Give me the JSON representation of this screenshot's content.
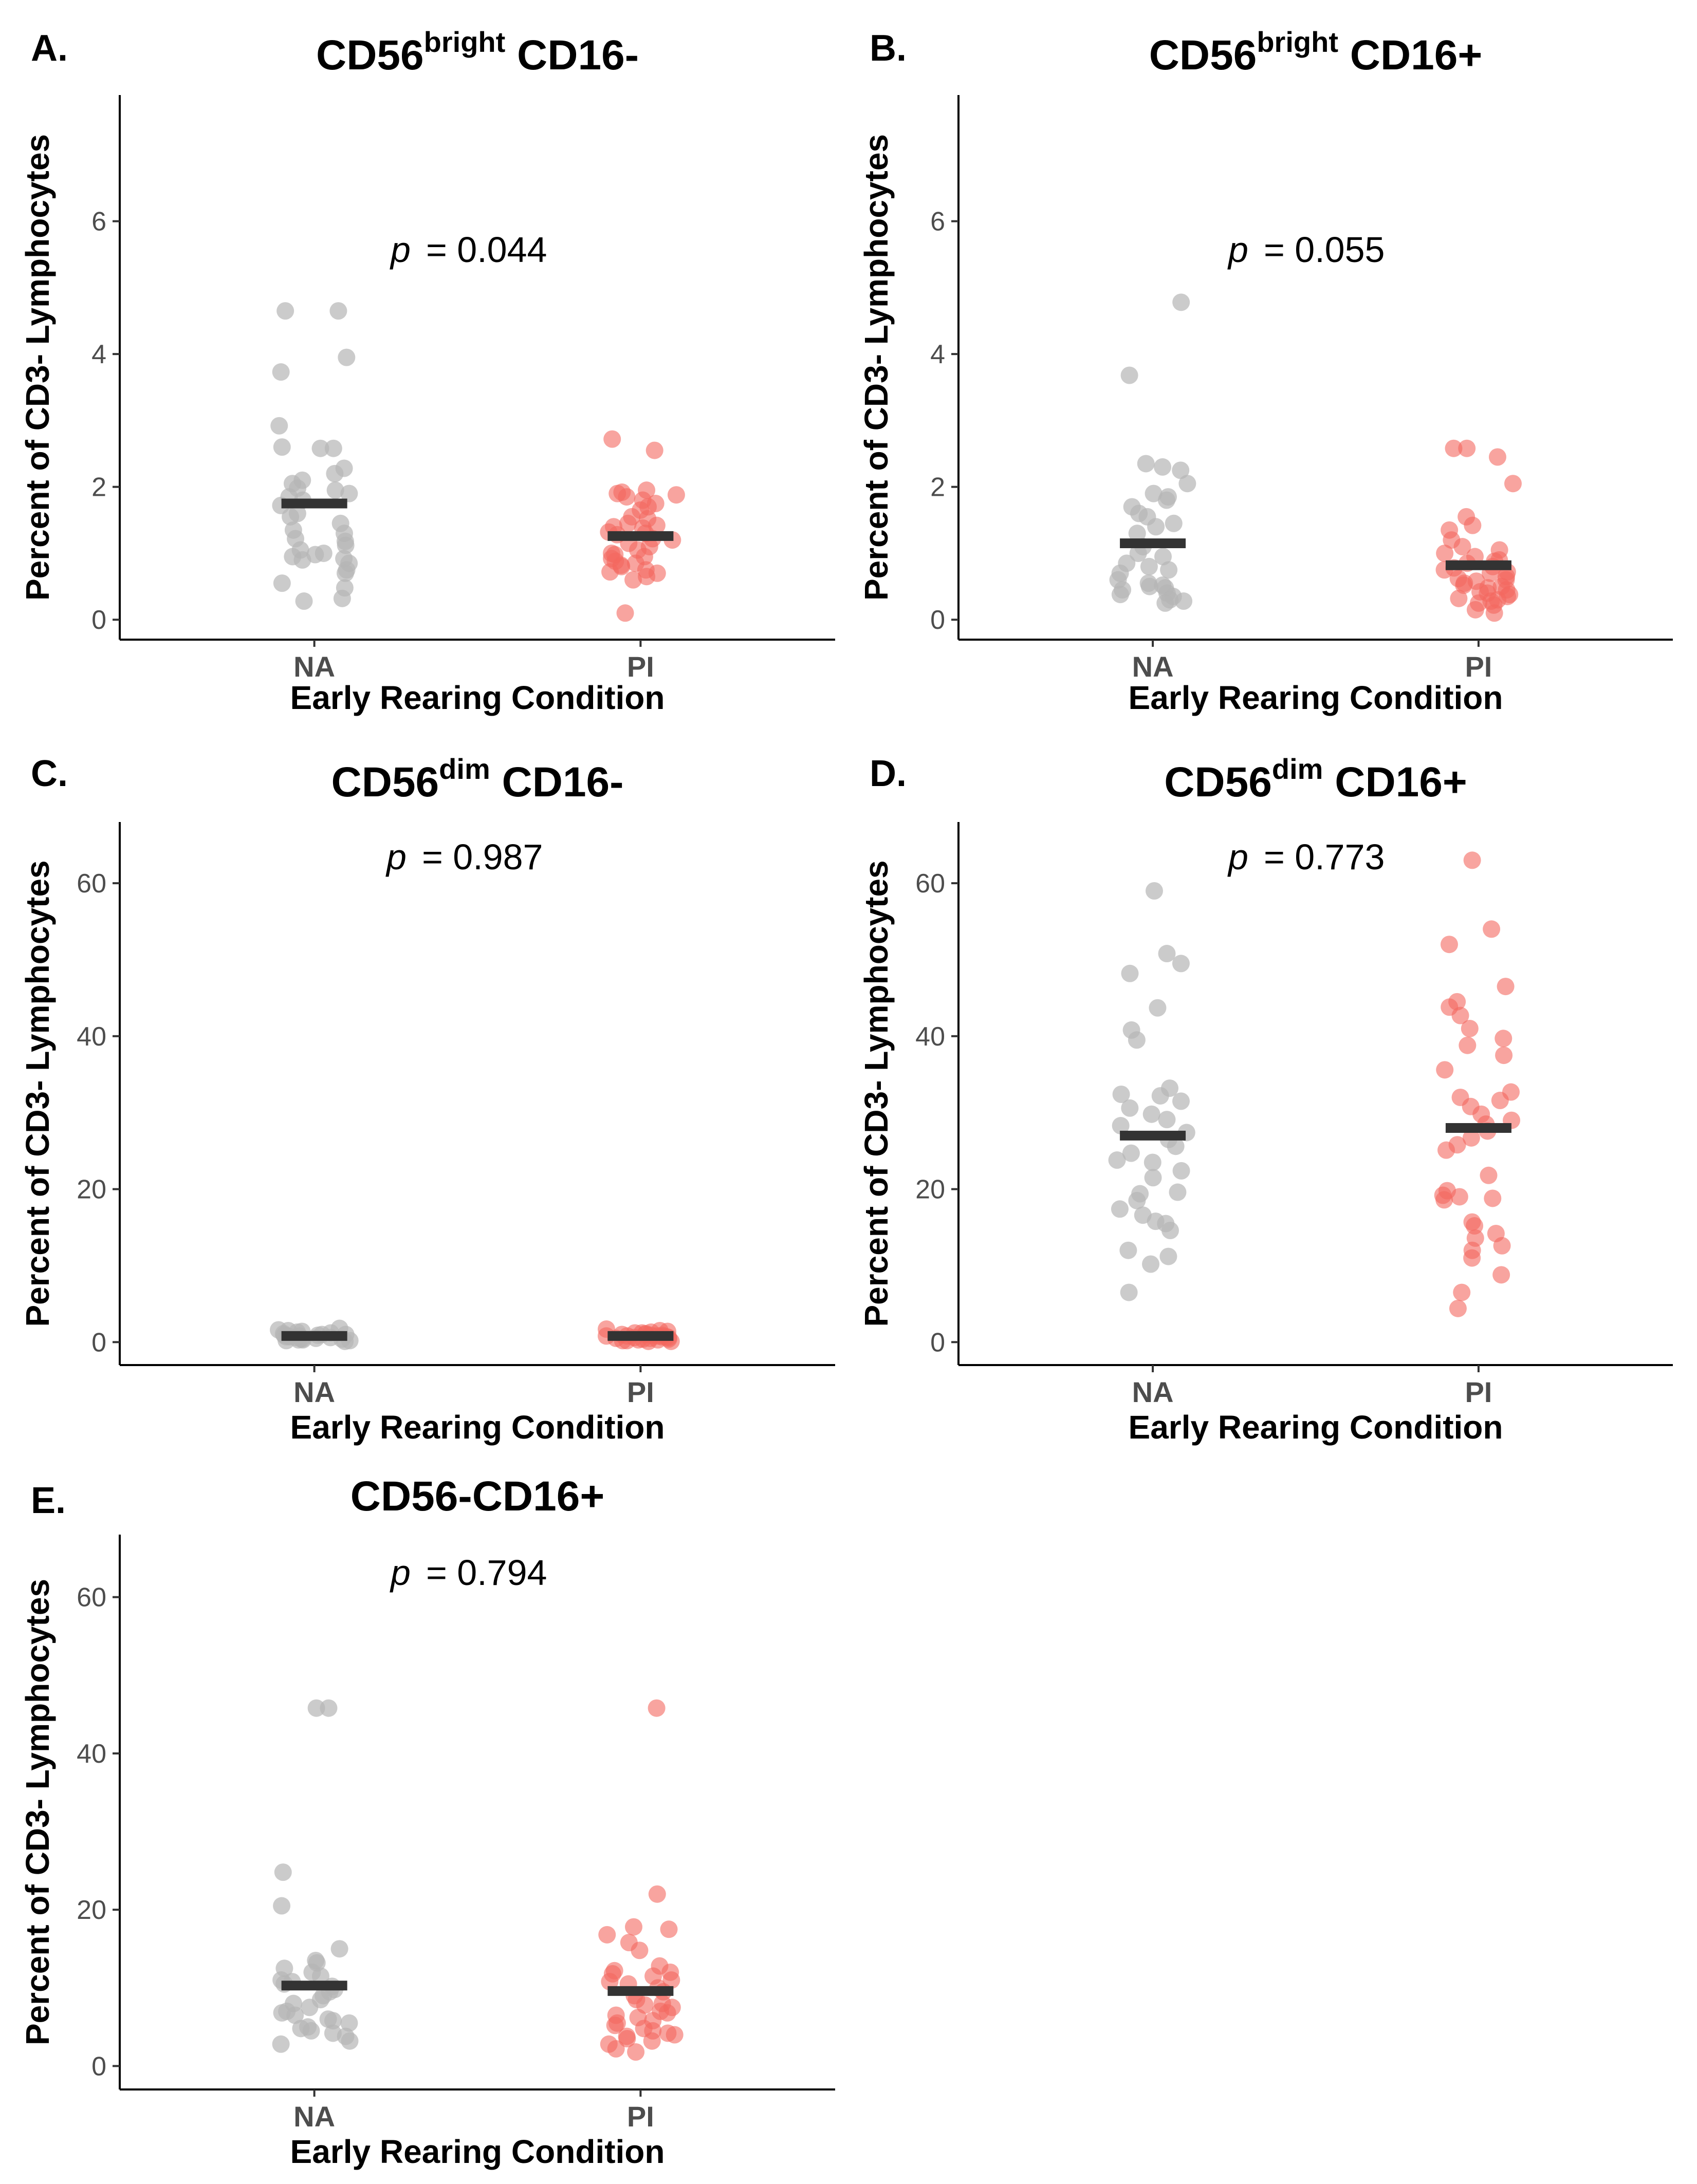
{
  "chart_data": [
    {
      "panel": "A.",
      "type": "scatter",
      "title": {
        "base": "CD56",
        "sup": "bright",
        "rest": " CD16-"
      },
      "p_label": "p",
      "p_value": "= 0.044",
      "xlabel": "Early Rearing Condition",
      "ylabel": "Percent of CD3- Lymphocytes",
      "categories": [
        "NA",
        "PI"
      ],
      "ylim": [
        -0.3,
        7.9
      ],
      "yticks": [
        0,
        2,
        4,
        6
      ],
      "means": [
        1.75,
        1.26
      ],
      "series": [
        {
          "name": "NA",
          "color": "#b5b5b5",
          "values": [
            4.65,
            4.65,
            3.95,
            3.73,
            2.92,
            2.6,
            2.58,
            2.58,
            2.28,
            2.2,
            2.1,
            2.05,
            1.98,
            1.95,
            1.9,
            1.85,
            1.8,
            1.72,
            1.6,
            1.55,
            1.45,
            1.35,
            1.3,
            1.22,
            1.18,
            1.12,
            1.05,
            1.0,
            0.98,
            0.95,
            0.92,
            0.9,
            0.85,
            0.75,
            0.7,
            0.55,
            0.48,
            0.32,
            0.28
          ]
        },
        {
          "name": "PI",
          "color": "#f3685f",
          "values": [
            2.72,
            2.55,
            1.95,
            1.92,
            1.9,
            1.88,
            1.85,
            1.8,
            1.75,
            1.7,
            1.65,
            1.55,
            1.52,
            1.45,
            1.42,
            1.4,
            1.38,
            1.32,
            1.3,
            1.28,
            1.22,
            1.2,
            1.15,
            1.1,
            1.05,
            1.0,
            0.98,
            0.95,
            0.92,
            0.88,
            0.85,
            0.82,
            0.8,
            0.75,
            0.72,
            0.7,
            0.65,
            0.6,
            0.1
          ]
        }
      ]
    },
    {
      "panel": "B.",
      "type": "scatter",
      "title": {
        "base": "CD56",
        "sup": "bright",
        "rest": " CD16+"
      },
      "p_label": "p",
      "p_value": "= 0.055",
      "xlabel": "Early Rearing Condition",
      "ylabel": "Percent of CD3- Lymphocytes",
      "categories": [
        "NA",
        "PI"
      ],
      "ylim": [
        -0.3,
        7.9
      ],
      "yticks": [
        0,
        2,
        4,
        6
      ],
      "means": [
        1.15,
        0.82
      ],
      "series": [
        {
          "name": "NA",
          "color": "#b5b5b5",
          "values": [
            4.78,
            3.68,
            2.35,
            2.3,
            2.25,
            2.05,
            1.9,
            1.85,
            1.8,
            1.7,
            1.6,
            1.55,
            1.45,
            1.4,
            1.3,
            1.1,
            1.0,
            0.95,
            0.85,
            0.8,
            0.75,
            0.7,
            0.6,
            0.55,
            0.52,
            0.5,
            0.48,
            0.45,
            0.4,
            0.38,
            0.35,
            0.3,
            0.28,
            0.25
          ]
        },
        {
          "name": "PI",
          "color": "#f3685f",
          "values": [
            2.58,
            2.58,
            2.45,
            2.05,
            1.55,
            1.42,
            1.35,
            1.2,
            1.1,
            1.05,
            1.0,
            0.95,
            0.9,
            0.88,
            0.85,
            0.8,
            0.78,
            0.75,
            0.72,
            0.7,
            0.65,
            0.62,
            0.6,
            0.58,
            0.55,
            0.52,
            0.5,
            0.48,
            0.45,
            0.42,
            0.4,
            0.38,
            0.35,
            0.32,
            0.3,
            0.28,
            0.25,
            0.22,
            0.15,
            0.1
          ]
        }
      ]
    },
    {
      "panel": "C.",
      "type": "scatter",
      "title": {
        "base": "CD56",
        "sup": "dim",
        "rest": " CD16-"
      },
      "p_label": "p",
      "p_value": "= 0.987",
      "xlabel": "Early Rearing Condition",
      "ylabel": "Percent of CD3- Lymphocytes",
      "categories": [
        "NA",
        "PI"
      ],
      "ylim": [
        -3,
        68
      ],
      "yticks": [
        0,
        20,
        40,
        60
      ],
      "means": [
        0.8,
        0.8
      ],
      "series": [
        {
          "name": "NA",
          "color": "#b5b5b5",
          "values": [
            1.8,
            1.6,
            1.5,
            1.4,
            1.3,
            1.2,
            1.1,
            1.0,
            1.0,
            0.9,
            0.9,
            0.8,
            0.8,
            0.7,
            0.7,
            0.6,
            0.6,
            0.5,
            0.5,
            0.4,
            0.4,
            0.3,
            0.3,
            0.2,
            0.2,
            0.1
          ]
        },
        {
          "name": "PI",
          "color": "#f3685f",
          "values": [
            1.7,
            1.5,
            1.4,
            1.3,
            1.2,
            1.2,
            1.1,
            1.0,
            1.0,
            0.9,
            0.9,
            0.8,
            0.8,
            0.8,
            0.7,
            0.7,
            0.6,
            0.6,
            0.5,
            0.5,
            0.4,
            0.4,
            0.3,
            0.3,
            0.2,
            0.2,
            0.1,
            0.1
          ]
        }
      ]
    },
    {
      "panel": "D.",
      "type": "scatter",
      "title": {
        "base": "CD56",
        "sup": "dim",
        "rest": " CD16+"
      },
      "p_label": "p",
      "p_value": "= 0.773",
      "xlabel": "Early Rearing Condition",
      "ylabel": "Percent of CD3- Lymphocytes",
      "categories": [
        "NA",
        "PI"
      ],
      "ylim": [
        -3,
        68
      ],
      "yticks": [
        0,
        20,
        40,
        60
      ],
      "means": [
        27,
        28
      ],
      "series": [
        {
          "name": "NA",
          "color": "#b5b5b5",
          "values": [
            59,
            50.8,
            49.5,
            48.2,
            43.7,
            40.8,
            39.5,
            33.2,
            32.4,
            32.2,
            31.5,
            30.6,
            29.8,
            29.1,
            28.3,
            27.4,
            26.5,
            25.6,
            24.7,
            23.8,
            23.5,
            22.4,
            21.5,
            19.6,
            19.4,
            18.5,
            17.4,
            16.6,
            15.8,
            15.5,
            14.6,
            12.0,
            11.2,
            10.2,
            6.5
          ]
        },
        {
          "name": "PI",
          "color": "#f3685f",
          "values": [
            63,
            54,
            52,
            46.5,
            44.5,
            43.8,
            42.7,
            41.0,
            39.7,
            38.8,
            37.5,
            35.6,
            32.7,
            32.0,
            31.6,
            30.8,
            29.8,
            29.0,
            28.5,
            27.6,
            26.7,
            25.8,
            25.1,
            21.8,
            19.8,
            19.2,
            19.0,
            18.8,
            18.6,
            15.7,
            15.2,
            14.2,
            13.6,
            12.6,
            12.0,
            11.0,
            8.8,
            6.5,
            4.4
          ]
        }
      ]
    },
    {
      "panel": "E.",
      "type": "scatter",
      "title": {
        "base": "CD56-CD16+",
        "sup": "",
        "rest": ""
      },
      "p_label": "p",
      "p_value": "= 0.794",
      "xlabel": "Early Rearing Condition",
      "ylabel": "Percent of CD3- Lymphocytes",
      "categories": [
        "NA",
        "PI"
      ],
      "ylim": [
        -3,
        68
      ],
      "yticks": [
        0,
        20,
        40,
        60
      ],
      "means": [
        10.3,
        9.6
      ],
      "series": [
        {
          "name": "NA",
          "color": "#b5b5b5",
          "values": [
            45.8,
            45.8,
            24.8,
            20.5,
            15.0,
            13.5,
            13.2,
            12.5,
            12.0,
            11.5,
            11.0,
            10.8,
            10.5,
            10.2,
            9.8,
            9.5,
            9.0,
            8.5,
            8.0,
            7.5,
            7.0,
            6.8,
            6.5,
            6.0,
            5.8,
            5.5,
            5.0,
            4.8,
            4.5,
            4.2,
            3.8,
            3.2,
            2.8
          ]
        },
        {
          "name": "PI",
          "color": "#f3685f",
          "values": [
            45.8,
            22.0,
            17.8,
            17.5,
            16.8,
            15.8,
            14.8,
            12.8,
            12.2,
            12.0,
            11.8,
            11.5,
            11.0,
            10.8,
            10.5,
            10.0,
            9.5,
            9.0,
            8.5,
            8.0,
            7.8,
            7.5,
            7.0,
            6.8,
            6.5,
            6.2,
            5.8,
            5.5,
            5.2,
            4.8,
            4.5,
            4.2,
            4.0,
            3.8,
            3.5,
            3.2,
            2.8,
            2.2,
            1.8
          ]
        }
      ]
    }
  ]
}
